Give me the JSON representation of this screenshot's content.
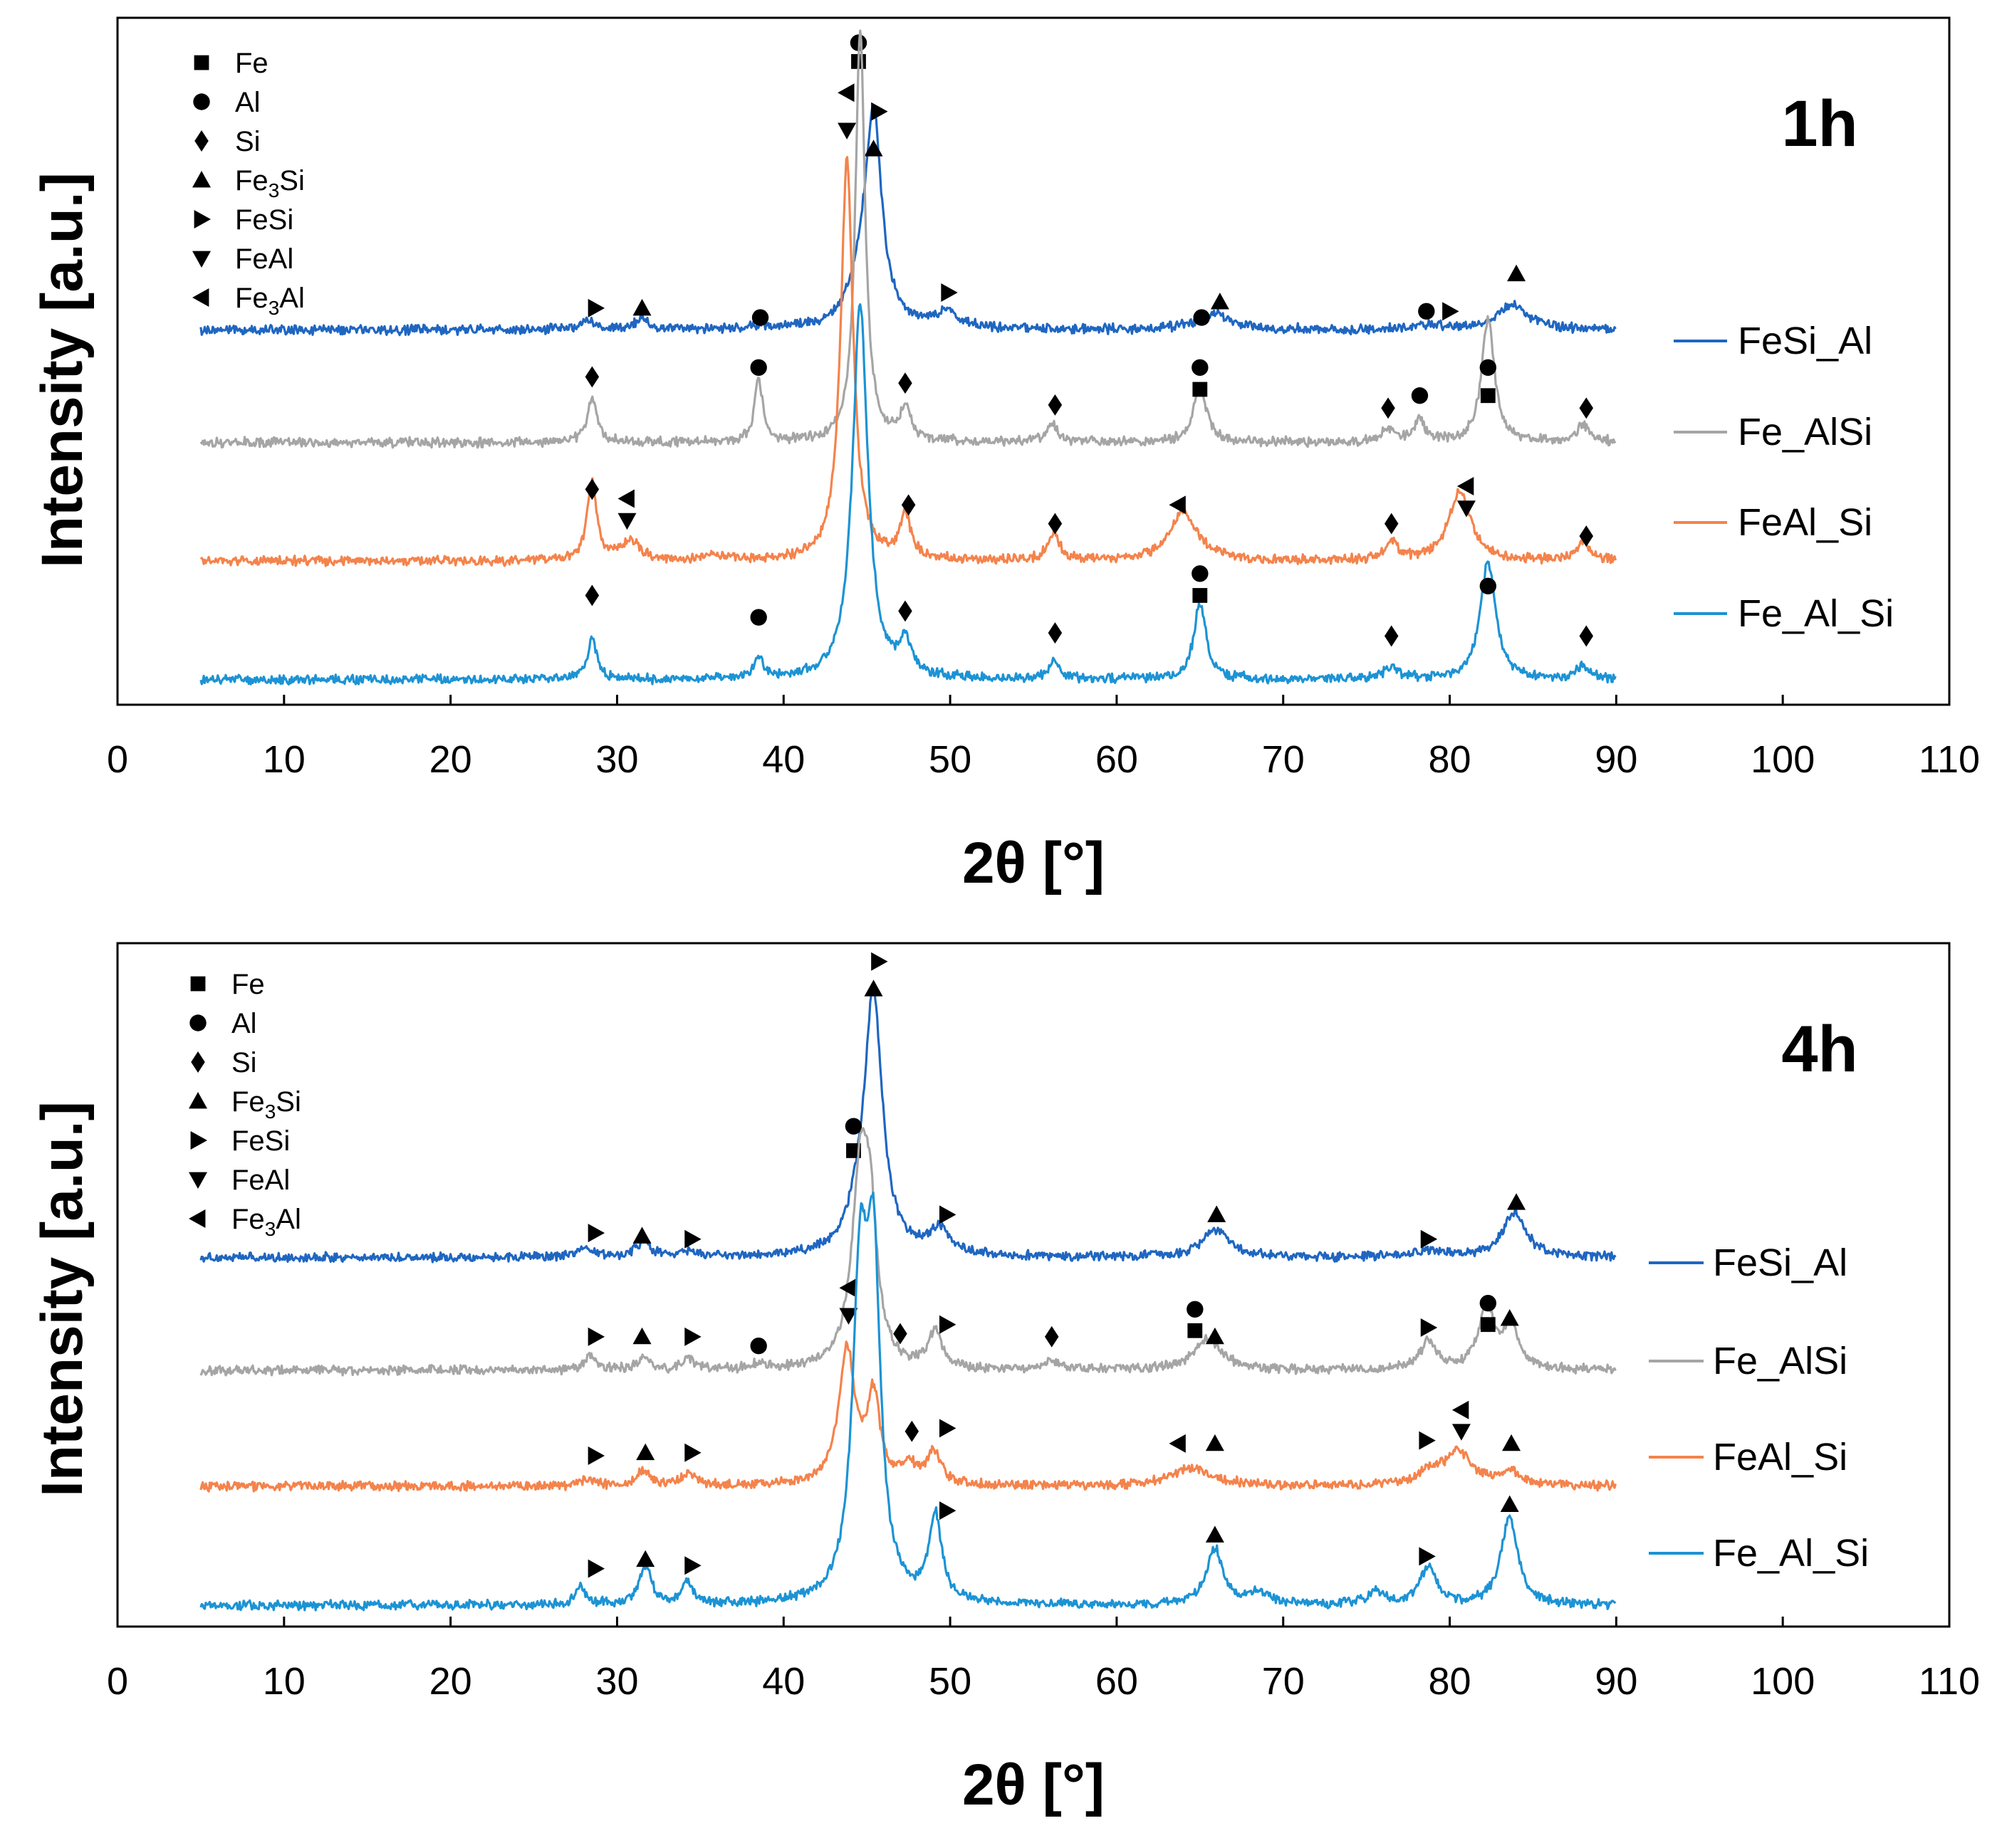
{
  "chart_data": [
    {
      "type": "line",
      "title": "1h",
      "xlabel": "2θ [°]",
      "ylabel": "Intensity [a.u.]",
      "xlim": [
        0,
        110
      ],
      "xticks": [
        "0",
        "10",
        "20",
        "30",
        "40",
        "50",
        "60",
        "70",
        "80",
        "90",
        "100",
        "110"
      ],
      "legend_symbols": [
        {
          "symbol": "square",
          "label": "Fe"
        },
        {
          "symbol": "circle",
          "label": "Al"
        },
        {
          "symbol": "diamond",
          "label": "Si"
        },
        {
          "symbol": "triangle-up",
          "label": "Fe3Si",
          "base": "Fe",
          "sub": "3",
          "rest": "Si"
        },
        {
          "symbol": "triangle-right",
          "label": "FeSi"
        },
        {
          "symbol": "triangle-down",
          "label": "FeAl"
        },
        {
          "symbol": "triangle-left",
          "label": "Fe3Al",
          "base": "Fe",
          "sub": "3",
          "rest": "Al"
        }
      ],
      "series": [
        {
          "name": "FeSi_Al",
          "color": "#1f66c1",
          "baseline": 6.0,
          "peaks": [
            [
              28.2,
              0.15,
              0.6
            ],
            [
              31.5,
              0.15,
              0.6
            ],
            [
              38.5,
              0.05,
              0.6
            ],
            [
              44.6,
              0.5,
              0.9
            ],
            [
              45.4,
              3.3,
              0.6
            ],
            [
              49.8,
              0.25,
              0.9
            ],
            [
              65.8,
              0.25,
              1.2
            ],
            [
              78.8,
              0.08,
              1.0
            ],
            [
              83.8,
              0.4,
              1.1
            ]
          ],
          "annotations": [
            [
              28.7,
              6.35,
              "triangle-right"
            ],
            [
              31.5,
              6.35,
              "triangle-up"
            ],
            [
              38.6,
              6.2,
              "circle"
            ],
            [
              49.9,
              6.6,
              "triangle-right"
            ],
            [
              65.1,
              6.2,
              "circle"
            ],
            [
              66.2,
              6.45,
              "triangle-up"
            ],
            [
              78.6,
              6.3,
              "circle"
            ],
            [
              80,
              6.3,
              "triangle-right"
            ],
            [
              84.0,
              6.9,
              "triangle-up"
            ],
            [
              44.5,
              10.3,
              "square"
            ],
            [
              44.5,
              10.6,
              "circle"
            ],
            [
              45.7,
              9.5,
              "triangle-right"
            ],
            [
              45.4,
              8.9,
              "triangle-up"
            ]
          ]
        },
        {
          "name": "Fe_AlSi",
          "color": "#a5a5a5",
          "baseline": 4.2,
          "peaks": [
            [
              28.5,
              0.7,
              0.35
            ],
            [
              38.5,
              1.0,
              0.3
            ],
            [
              44.6,
              6.6,
              0.35
            ],
            [
              47.3,
              0.5,
              0.4
            ],
            [
              56.1,
              0.3,
              0.4
            ],
            [
              65.0,
              0.9,
              0.45
            ],
            [
              76.3,
              0.2,
              0.5
            ],
            [
              78.2,
              0.35,
              0.4
            ],
            [
              82.3,
              2.0,
              0.45
            ],
            [
              88.0,
              0.25,
              0.5
            ]
          ],
          "annotations": [
            [
              28.5,
              5.25,
              "diamond"
            ],
            [
              38.5,
              5.4,
              "circle"
            ],
            [
              47.3,
              5.15,
              "diamond"
            ],
            [
              56.3,
              4.8,
              "diamond"
            ],
            [
              65.0,
              5.4,
              "circle"
            ],
            [
              65.0,
              5.05,
              "square"
            ],
            [
              76.3,
              4.75,
              "diamond"
            ],
            [
              78.2,
              4.95,
              "circle"
            ],
            [
              82.3,
              5.4,
              "circle"
            ],
            [
              82.3,
              4.95,
              "square"
            ],
            [
              88.2,
              4.75,
              "diamond"
            ]
          ]
        },
        {
          "name": "FeAl_Si",
          "color": "#f4834c",
          "baseline": 2.3,
          "peaks": [
            [
              28.5,
              1.25,
              0.35
            ],
            [
              30.8,
              0.3,
              0.7
            ],
            [
              35.8,
              0.1,
              0.6
            ],
            [
              43.8,
              6.4,
              0.45
            ],
            [
              47.3,
              0.7,
              0.4
            ],
            [
              56.2,
              0.45,
              0.4
            ],
            [
              64.0,
              0.8,
              1.0
            ],
            [
              76.5,
              0.3,
              0.45
            ],
            [
              80.6,
              1.1,
              0.8
            ],
            [
              88.0,
              0.3,
              0.5
            ]
          ],
          "annotations": [
            [
              28.5,
              3.45,
              "diamond"
            ],
            [
              30.6,
              3.3,
              "triangle-left"
            ],
            [
              30.6,
              2.95,
              "triangle-down"
            ],
            [
              47.5,
              3.2,
              "diamond"
            ],
            [
              56.3,
              2.9,
              "diamond"
            ],
            [
              63.7,
              3.2,
              "triangle-left"
            ],
            [
              76.5,
              2.9,
              "diamond"
            ],
            [
              81.0,
              3.5,
              "triangle-left"
            ],
            [
              81.0,
              3.15,
              "triangle-down"
            ],
            [
              88.2,
              2.7,
              "diamond"
            ],
            [
              43.8,
              9.8,
              "triangle-left"
            ],
            [
              43.8,
              9.2,
              "triangle-down"
            ]
          ]
        },
        {
          "name": "Fe_Al_Si",
          "color": "#1c93d4",
          "baseline": 0.4,
          "peaks": [
            [
              28.5,
              0.65,
              0.35
            ],
            [
              38.5,
              0.35,
              0.3
            ],
            [
              44.6,
              6.0,
              0.55
            ],
            [
              47.3,
              0.55,
              0.4
            ],
            [
              56.2,
              0.28,
              0.4
            ],
            [
              65.0,
              1.2,
              0.45
            ],
            [
              76.5,
              0.2,
              0.5
            ],
            [
              82.3,
              1.9,
              0.55
            ],
            [
              88.0,
              0.2,
              0.5
            ]
          ],
          "annotations": [
            [
              28.5,
              1.75,
              "diamond"
            ],
            [
              38.5,
              1.4,
              "circle"
            ],
            [
              47.3,
              1.5,
              "diamond"
            ],
            [
              56.3,
              1.15,
              "diamond"
            ],
            [
              65.0,
              2.1,
              "circle"
            ],
            [
              65.0,
              1.75,
              "square"
            ],
            [
              76.5,
              1.1,
              "diamond"
            ],
            [
              82.3,
              1.9,
              "circle"
            ],
            [
              88.2,
              1.1,
              "diamond"
            ]
          ]
        }
      ]
    },
    {
      "type": "line",
      "title": "4h",
      "xlabel": "2θ [°]",
      "ylabel": "Intensity [a.u.]",
      "xlim": [
        0,
        110
      ],
      "xticks": [
        "0",
        "10",
        "20",
        "30",
        "40",
        "50",
        "60",
        "70",
        "80",
        "90",
        "100",
        "110"
      ],
      "legend_symbols": [
        {
          "symbol": "square",
          "label": "Fe"
        },
        {
          "symbol": "circle",
          "label": "Al"
        },
        {
          "symbol": "diamond",
          "label": "Si"
        },
        {
          "symbol": "triangle-up",
          "label": "Fe3Si",
          "base": "Fe",
          "sub": "3",
          "rest": "Si"
        },
        {
          "symbol": "triangle-right",
          "label": "FeSi"
        },
        {
          "symbol": "triangle-down",
          "label": "FeAl"
        },
        {
          "symbol": "triangle-left",
          "label": "Fe3Al",
          "base": "Fe",
          "sub": "3",
          "rest": "Al"
        }
      ],
      "series": [
        {
          "name": "FeSi_Al",
          "color": "#1f66c1",
          "baseline": 6.05,
          "peaks": [
            [
              28.2,
              0.12,
              0.6
            ],
            [
              31.6,
              0.25,
              0.5
            ],
            [
              34.3,
              0.08,
              0.6
            ],
            [
              44.6,
              0.5,
              0.9
            ],
            [
              45.4,
              4.1,
              0.65
            ],
            [
              49.4,
              0.4,
              0.8
            ],
            [
              66.0,
              0.45,
              1.0
            ],
            [
              78.8,
              0.1,
              1.0
            ],
            [
              83.9,
              0.75,
              0.8
            ]
          ],
          "annotations": [
            [
              28.7,
              6.45,
              "triangle-right"
            ],
            [
              31.5,
              6.4,
              "triangle-up"
            ],
            [
              34.5,
              6.35,
              "triangle-right"
            ],
            [
              49.8,
              6.75,
              "triangle-right"
            ],
            [
              66.0,
              6.75,
              "triangle-up"
            ],
            [
              78.7,
              6.35,
              "triangle-right"
            ],
            [
              84.0,
              6.95,
              "triangle-up"
            ],
            [
              44.2,
              8.2,
              "circle"
            ],
            [
              44.2,
              7.8,
              "square"
            ],
            [
              45.7,
              10.9,
              "triangle-right"
            ],
            [
              45.4,
              10.45,
              "triangle-up"
            ]
          ]
        },
        {
          "name": "Fe_AlSi",
          "color": "#a5a5a5",
          "baseline": 4.2,
          "peaks": [
            [
              28.4,
              0.22,
              0.4
            ],
            [
              31.6,
              0.22,
              0.4
            ],
            [
              34.3,
              0.2,
              0.4
            ],
            [
              38.5,
              0.1,
              0.4
            ],
            [
              44.6,
              3.0,
              0.6
            ],
            [
              45.2,
              2.0,
              0.5
            ],
            [
              49.1,
              0.6,
              0.45
            ],
            [
              56.1,
              0.15,
              0.5
            ],
            [
              65.5,
              0.5,
              1.0
            ],
            [
              78.7,
              0.45,
              0.6
            ],
            [
              82.2,
              1.0,
              0.6
            ],
            [
              83.7,
              0.75,
              0.5
            ]
          ],
          "annotations": [
            [
              28.7,
              4.75,
              "triangle-right"
            ],
            [
              31.5,
              4.75,
              "triangle-up"
            ],
            [
              34.5,
              4.75,
              "triangle-right"
            ],
            [
              38.5,
              4.6,
              "circle"
            ],
            [
              47.0,
              4.8,
              "diamond"
            ],
            [
              49.8,
              4.95,
              "triangle-right"
            ],
            [
              56.1,
              4.75,
              "diamond"
            ],
            [
              64.7,
              5.2,
              "circle"
            ],
            [
              64.7,
              4.85,
              "square"
            ],
            [
              65.9,
              4.75,
              "triangle-up"
            ],
            [
              78.7,
              4.9,
              "triangle-right"
            ],
            [
              82.3,
              5.3,
              "circle"
            ],
            [
              82.3,
              4.95,
              "square"
            ],
            [
              83.6,
              5.05,
              "triangle-up"
            ],
            [
              43.9,
              5.55,
              "triangle-left"
            ],
            [
              43.9,
              5.1,
              "triangle-down"
            ]
          ]
        },
        {
          "name": "FeAl_Si",
          "color": "#f4834c",
          "baseline": 2.3,
          "peaks": [
            [
              28.2,
              0.12,
              0.5
            ],
            [
              31.6,
              0.25,
              0.5
            ],
            [
              34.3,
              0.2,
              0.5
            ],
            [
              43.8,
              2.2,
              0.6
            ],
            [
              45.4,
              1.4,
              0.45
            ],
            [
              47.5,
              0.3,
              0.5
            ],
            [
              49.0,
              0.55,
              0.5
            ],
            [
              64.5,
              0.3,
              1.5
            ],
            [
              78.7,
              0.2,
              0.8
            ],
            [
              80.5,
              0.55,
              1.0
            ],
            [
              83.6,
              0.25,
              0.6
            ]
          ],
          "annotations": [
            [
              28.7,
              2.8,
              "triangle-right"
            ],
            [
              31.7,
              2.85,
              "triangle-up"
            ],
            [
              34.5,
              2.85,
              "triangle-right"
            ],
            [
              47.7,
              3.2,
              "diamond"
            ],
            [
              49.8,
              3.25,
              "triangle-right"
            ],
            [
              63.7,
              3.0,
              "triangle-left"
            ],
            [
              65.9,
              3.0,
              "triangle-up"
            ],
            [
              78.6,
              3.05,
              "triangle-right"
            ],
            [
              80.7,
              3.55,
              "triangle-left"
            ],
            [
              80.7,
              3.2,
              "triangle-down"
            ],
            [
              83.7,
              3.0,
              "triangle-up"
            ]
          ]
        },
        {
          "name": "Fe_Al_Si",
          "color": "#1c93d4",
          "baseline": 0.35,
          "peaks": [
            [
              27.8,
              0.3,
              0.35
            ],
            [
              31.7,
              0.6,
              0.45
            ],
            [
              34.2,
              0.35,
              0.4
            ],
            [
              44.6,
              5.0,
              0.55
            ],
            [
              45.4,
              5.0,
              0.5
            ],
            [
              49.1,
              1.4,
              0.45
            ],
            [
              65.9,
              0.9,
              0.6
            ],
            [
              68.5,
              0.2,
              0.8
            ],
            [
              75.5,
              0.2,
              0.6
            ],
            [
              78.7,
              0.6,
              0.6
            ],
            [
              83.6,
              1.45,
              0.6
            ]
          ],
          "annotations": [
            [
              28.7,
              0.95,
              "triangle-right"
            ],
            [
              31.7,
              1.1,
              "triangle-up"
            ],
            [
              34.5,
              1.0,
              "triangle-right"
            ],
            [
              49.8,
              1.9,
              "triangle-right"
            ],
            [
              65.9,
              1.5,
              "triangle-up"
            ],
            [
              78.6,
              1.15,
              "triangle-right"
            ],
            [
              83.6,
              2.0,
              "triangle-up"
            ]
          ]
        }
      ]
    }
  ]
}
